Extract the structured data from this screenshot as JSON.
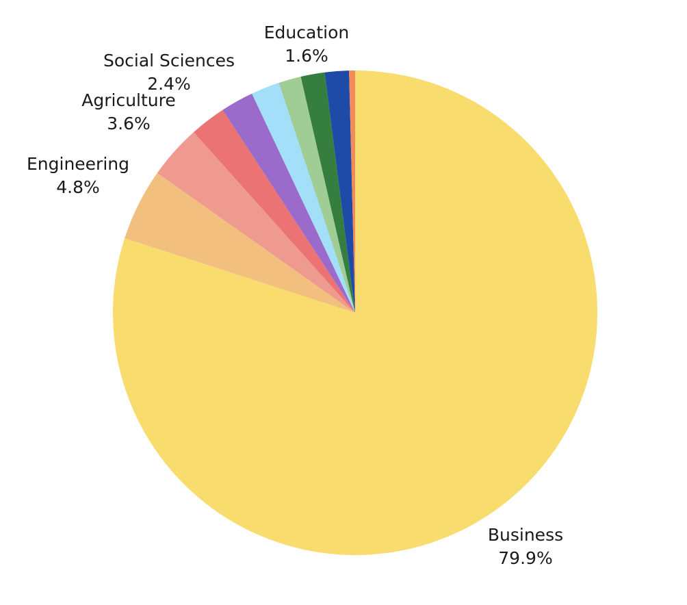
{
  "chart_data": {
    "type": "pie",
    "categories": [
      "Business",
      "Engineering",
      "Agriculture",
      "Social Sciences",
      null,
      null,
      null,
      null,
      "Education",
      null
    ],
    "values": [
      79.9,
      4.8,
      3.6,
      2.4,
      2.2,
      1.9,
      1.5,
      1.6,
      1.6,
      0.4
    ],
    "value_labels": [
      "79.9%",
      "4.8%",
      "3.6%",
      "2.4%",
      null,
      null,
      null,
      null,
      "1.6%",
      null
    ],
    "colors": [
      "#f9dc6e",
      "#f2bf7e",
      "#ee9a8e",
      "#ec7373",
      "#9b6bcc",
      "#a3dff8",
      "#9fcd95",
      "#367e3f",
      "#1e4aa8",
      "#f28a5a"
    ]
  }
}
